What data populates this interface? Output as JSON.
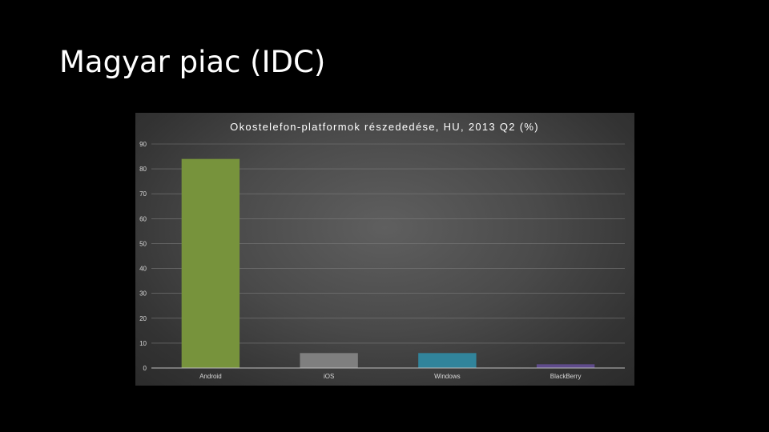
{
  "slide": {
    "title": "Magyar piac (IDC)"
  },
  "chart_data": {
    "type": "bar",
    "title": "Okostelefon-platformok részededése, HU, 2013 Q2 (%)",
    "xlabel": "",
    "ylabel": "",
    "categories": [
      "Android",
      "iOS",
      "Windows",
      "BlackBerry"
    ],
    "values": [
      84,
      6,
      6,
      1.5
    ],
    "colors": [
      "#77933c",
      "#7f7f7f",
      "#31849b",
      "#5f4b8b"
    ],
    "ylim": [
      0,
      90
    ],
    "yticks": [
      0,
      10,
      20,
      30,
      40,
      50,
      60,
      70,
      80,
      90
    ],
    "grid": true,
    "legend": "none"
  }
}
